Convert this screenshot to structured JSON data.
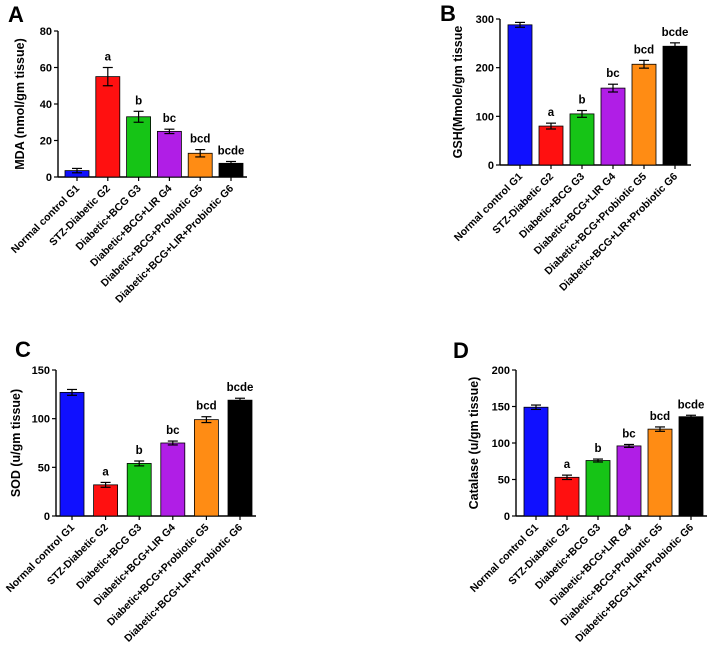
{
  "chart_data": [
    {
      "type": "bar",
      "panel": "A",
      "ylabel": "MDA (nmol/gm tissue)",
      "ylim": [
        0,
        80
      ],
      "yticks": [
        0,
        20,
        40,
        60,
        80
      ],
      "categories": [
        "Normal control G1",
        "STZ-Diabetic G2",
        "Diabetic+BCG G3",
        "Diabetic+BCG+LIR G4",
        "Diabetic+BCG+Probiotic G5",
        "Diabetic+BCG+LIR+Probiotic G6"
      ],
      "values": [
        3.5,
        55,
        33,
        25,
        13,
        7.5
      ],
      "errors": [
        1.2,
        5,
        3,
        1.2,
        2,
        1
      ],
      "significance": [
        "",
        "a",
        "b",
        "bc",
        "bcd",
        "bcde"
      ],
      "colors": [
        "#1010ff",
        "#ff1010",
        "#16c416",
        "#b01ee6",
        "#ff8c14",
        "#000000"
      ]
    },
    {
      "type": "bar",
      "panel": "B",
      "ylabel": "GSH(Mmole/gm tissue",
      "ylim": [
        0,
        300
      ],
      "yticks": [
        0,
        100,
        200,
        300
      ],
      "categories": [
        "Normal control G1",
        "STZ-Diabetic G2",
        "Diabetic+BCG G3",
        "Diabetic+BCG+LIR G4",
        "Diabetic+BCG+Probiotic G5",
        "Diabetic+BCG+LIR+Probiotic G6"
      ],
      "values": [
        288,
        80,
        105,
        158,
        207,
        244
      ],
      "errors": [
        5,
        6,
        7,
        8,
        8,
        7
      ],
      "significance": [
        "",
        "a",
        "b",
        "bc",
        "bcd",
        "bcde"
      ],
      "colors": [
        "#1010ff",
        "#ff1010",
        "#16c416",
        "#b01ee6",
        "#ff8c14",
        "#000000"
      ]
    },
    {
      "type": "bar",
      "panel": "C",
      "ylabel": "SOD (u/gm tissue)",
      "ylim": [
        0,
        150
      ],
      "yticks": [
        0,
        50,
        100,
        150
      ],
      "categories": [
        "Normal control G1",
        "STZ-Diabetic G2",
        "Diabetic+BCG G3",
        "Diabetic+BCG+LIR G4",
        "Diabetic+BCG+Probiotic G5",
        "Diabetic+BCG+LIR+Probiotic G6"
      ],
      "values": [
        127,
        32,
        54,
        75,
        99,
        119
      ],
      "errors": [
        3,
        2.5,
        2.5,
        2,
        3,
        2
      ],
      "significance": [
        "",
        "a",
        "b",
        "bc",
        "bcd",
        "bcde"
      ],
      "colors": [
        "#1010ff",
        "#ff1010",
        "#16c416",
        "#b01ee6",
        "#ff8c14",
        "#000000"
      ]
    },
    {
      "type": "bar",
      "panel": "D",
      "ylabel": "Catalase (u/gm tissue)",
      "ylim": [
        0,
        200
      ],
      "yticks": [
        0,
        50,
        100,
        150,
        200
      ],
      "categories": [
        "Normal control G1",
        "STZ-Diabetic G2",
        "Diabetic+BCG G3",
        "Diabetic+BCG+LIR G4",
        "Diabetic+BCG+Probiotic G5",
        "Diabetic+BCG+LIR+Probiotic G6"
      ],
      "values": [
        149,
        53,
        76,
        96,
        119,
        136
      ],
      "errors": [
        3,
        3,
        2,
        2,
        3,
        2
      ],
      "significance": [
        "",
        "a",
        "b",
        "bc",
        "bcd",
        "bcde"
      ],
      "colors": [
        "#1010ff",
        "#ff1010",
        "#16c416",
        "#b01ee6",
        "#ff8c14",
        "#000000"
      ]
    }
  ]
}
